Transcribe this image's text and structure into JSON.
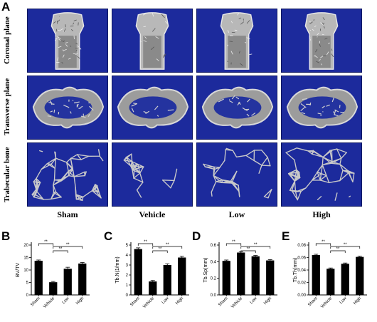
{
  "figure": {
    "panel_a": "A",
    "rows": [
      "Coronal plane",
      "Transverse plane",
      "Trabecular bone"
    ],
    "groups": [
      "Sham",
      "Vehicle",
      "Low",
      "High"
    ]
  },
  "chart_data": [
    {
      "panel": "B",
      "type": "bar",
      "categories": [
        "Sham",
        "Vehicle",
        "Low",
        "High"
      ],
      "values": [
        13.7,
        5.1,
        10.5,
        12.6
      ],
      "errors": [
        0.3,
        0.3,
        0.6,
        0.4
      ],
      "ylabel": "BV/TV",
      "ylim": [
        0,
        20
      ],
      "ticks": [
        0,
        5,
        10,
        15,
        20
      ],
      "tick_labels": [
        "0",
        "5",
        "10",
        "15",
        "20"
      ],
      "significance": [
        {
          "from": 0,
          "to": 1,
          "label": "**"
        },
        {
          "from": 1,
          "to": 2,
          "label": "**"
        },
        {
          "from": 1,
          "to": 3,
          "label": "**"
        }
      ]
    },
    {
      "panel": "C",
      "type": "bar",
      "categories": [
        "Sham",
        "Vehicle",
        "Low",
        "High"
      ],
      "values": [
        4.6,
        1.35,
        3.0,
        3.75
      ],
      "errors": [
        0.12,
        0.1,
        0.12,
        0.12
      ],
      "ylabel": "Tb.N(1/mm)",
      "ylim": [
        0,
        5
      ],
      "ticks": [
        0,
        1,
        2,
        3,
        4,
        5
      ],
      "tick_labels": [
        "0",
        "1",
        "2",
        "3",
        "4",
        "5"
      ],
      "significance": [
        {
          "from": 0,
          "to": 1,
          "label": "**"
        },
        {
          "from": 1,
          "to": 2,
          "label": "**"
        },
        {
          "from": 1,
          "to": 3,
          "label": "**"
        }
      ]
    },
    {
      "panel": "D",
      "type": "bar",
      "categories": [
        "Sham",
        "Vehicle",
        "Low",
        "High"
      ],
      "values": [
        0.41,
        0.51,
        0.465,
        0.415
      ],
      "errors": [
        0.01,
        0.01,
        0.01,
        0.01
      ],
      "ylabel": "Tb.Sp(mm)",
      "ylim": [
        0,
        0.6
      ],
      "ticks": [
        0,
        0.2,
        0.4,
        0.6
      ],
      "tick_labels": [
        "0.0",
        "0.2",
        "0.4",
        "0.6"
      ],
      "significance": [
        {
          "from": 0,
          "to": 1,
          "label": "**"
        },
        {
          "from": 1,
          "to": 2,
          "label": "**"
        },
        {
          "from": 1,
          "to": 3,
          "label": "**"
        }
      ]
    },
    {
      "panel": "E",
      "type": "bar",
      "categories": [
        "Sham",
        "Vehicle",
        "Low",
        "High"
      ],
      "values": [
        0.064,
        0.042,
        0.05,
        0.061
      ],
      "errors": [
        0.0012,
        0.0012,
        0.0012,
        0.0012
      ],
      "ylabel": "Tb.Th(mm)",
      "ylim": [
        0,
        0.08
      ],
      "ticks": [
        0,
        0.02,
        0.04,
        0.06,
        0.08
      ],
      "tick_labels": [
        "0.00",
        "0.02",
        "0.04",
        "0.06",
        "0.08"
      ],
      "significance": [
        {
          "from": 0,
          "to": 1,
          "label": "**"
        },
        {
          "from": 1,
          "to": 2,
          "label": "**"
        },
        {
          "from": 1,
          "to": 3,
          "label": "**"
        }
      ]
    }
  ]
}
